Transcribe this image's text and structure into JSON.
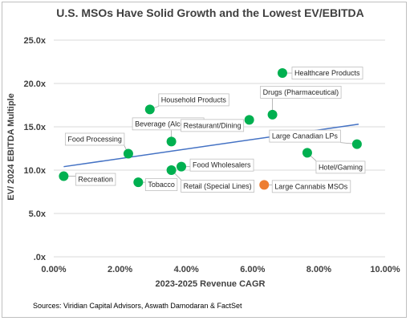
{
  "chart_data": {
    "type": "scatter",
    "title": "U.S. MSOs Have Solid Growth and the Lowest EV/EBITDA",
    "xlabel": "2023-2025 Revenue CAGR",
    "ylabel": "EV/ 2024 EBITDA Multiple",
    "xlim": [
      0,
      0.1
    ],
    "ylim": [
      0,
      25
    ],
    "x_ticks": [
      {
        "value": 0.0,
        "label": "0.00%"
      },
      {
        "value": 0.02,
        "label": "2.00%"
      },
      {
        "value": 0.04,
        "label": "4.00%"
      },
      {
        "value": 0.06,
        "label": "6.00%"
      },
      {
        "value": 0.08,
        "label": "8.00%"
      },
      {
        "value": 0.1,
        "label": "10.00%"
      }
    ],
    "y_ticks": [
      {
        "value": 0,
        "label": ".0x"
      },
      {
        "value": 5,
        "label": "5.0x"
      },
      {
        "value": 10,
        "label": "10.0x"
      },
      {
        "value": 15,
        "label": "15.0x"
      },
      {
        "value": 20,
        "label": "20.0x"
      },
      {
        "value": 25,
        "label": "25.0x"
      }
    ],
    "grid": "horizontal",
    "points": [
      {
        "name": "Recreation",
        "x": 0.003,
        "y": 9.3,
        "color": "#00b050"
      },
      {
        "name": "Food Processing",
        "x": 0.0225,
        "y": 11.9,
        "color": "#00b050"
      },
      {
        "name": "Tobacco",
        "x": 0.0255,
        "y": 8.6,
        "color": "#00b050"
      },
      {
        "name": "Household Products",
        "x": 0.029,
        "y": 17.0,
        "color": "#00b050"
      },
      {
        "name": "Beverage (Alcoholic)",
        "x": 0.0355,
        "y": 13.3,
        "color": "#00b050"
      },
      {
        "name": "Retail (Special Lines)",
        "x": 0.0355,
        "y": 10.0,
        "color": "#00b050"
      },
      {
        "name": "Food Wholesalers",
        "x": 0.0385,
        "y": 10.4,
        "color": "#00b050"
      },
      {
        "name": "Restaurant/Dining",
        "x": 0.059,
        "y": 15.8,
        "color": "#00b050"
      },
      {
        "name": "Drugs (Pharmaceutical)",
        "x": 0.066,
        "y": 16.4,
        "color": "#00b050"
      },
      {
        "name": "Healthcare Products",
        "x": 0.069,
        "y": 21.2,
        "color": "#00b050"
      },
      {
        "name": "Large Cannabis MSOs",
        "x": 0.0635,
        "y": 8.3,
        "color": "#ed7d31"
      },
      {
        "name": "Hotel/Gaming",
        "x": 0.0765,
        "y": 12.0,
        "color": "#00b050"
      },
      {
        "name": "Large Canadian LPs",
        "x": 0.0915,
        "y": 13.0,
        "color": "#00b050"
      }
    ],
    "trendline": {
      "x": [
        0.003,
        0.092
      ],
      "y": [
        10.4,
        15.3
      ],
      "color": "#4472c4"
    }
  },
  "source": "Sources:  Viridian Capital Advisors, Aswath Damodaran & FactSet"
}
